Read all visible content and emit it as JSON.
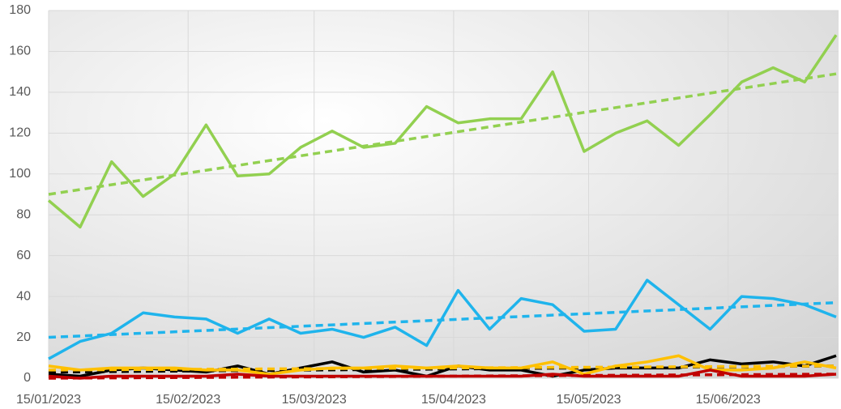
{
  "chart_data": {
    "type": "line",
    "x": [
      "2023-01-15",
      "2023-01-22",
      "2023-01-29",
      "2023-02-05",
      "2023-02-12",
      "2023-02-19",
      "2023-02-26",
      "2023-03-05",
      "2023-03-12",
      "2023-03-19",
      "2023-03-26",
      "2023-04-02",
      "2023-04-09",
      "2023-04-16",
      "2023-04-23",
      "2023-04-30",
      "2023-05-07",
      "2023-05-14",
      "2023-05-21",
      "2023-05-28",
      "2023-06-04",
      "2023-06-11",
      "2023-06-18",
      "2023-06-25",
      "2023-07-02",
      "2023-07-09"
    ],
    "series": [
      {
        "color": "#92d050",
        "values": [
          87,
          74,
          106,
          89,
          100,
          124,
          99,
          100,
          113,
          121,
          113,
          115,
          133,
          125,
          127,
          127,
          150,
          111,
          120,
          126,
          114,
          129,
          145,
          152,
          145,
          168
        ],
        "trend": [
          90,
          149
        ]
      },
      {
        "color": "#1fb4ec",
        "values": [
          9.5,
          18,
          22,
          32,
          30,
          29,
          22,
          29,
          22,
          24,
          20,
          25,
          16,
          43,
          24,
          39,
          36,
          23,
          24,
          48,
          36,
          24,
          40,
          39,
          36,
          30
        ],
        "trend": [
          20,
          37
        ]
      },
      {
        "color": "#000000",
        "values": [
          2,
          1,
          4,
          5,
          4,
          3,
          6,
          2,
          5,
          8,
          3,
          4,
          1,
          6,
          4,
          4,
          1,
          4,
          5,
          5,
          5,
          9,
          7,
          8,
          6,
          11
        ],
        "trend": [
          3,
          6
        ]
      },
      {
        "color": "#ffc000",
        "values": [
          6,
          4,
          5,
          5,
          5,
          4,
          4,
          2,
          4,
          5,
          5,
          6,
          5,
          6,
          5,
          5,
          8,
          2,
          6,
          8,
          11,
          4,
          4,
          5,
          8,
          5
        ],
        "trend": [
          4,
          6
        ]
      },
      {
        "color": "#c00000",
        "values": [
          1,
          0,
          1,
          1,
          1,
          1,
          2,
          1,
          1,
          1,
          1,
          1,
          1,
          1,
          1,
          1,
          2,
          1,
          1,
          1,
          1,
          4,
          1,
          1,
          1,
          2
        ],
        "trend": [
          0,
          2
        ]
      }
    ],
    "xlim": [
      "2023-01-15",
      "2023-07-09"
    ],
    "xticks": [
      {
        "value": "2023-01-15",
        "label": "15/01/2023"
      },
      {
        "value": "2023-02-15",
        "label": "15/02/2023"
      },
      {
        "value": "2023-03-15",
        "label": "15/03/2023"
      },
      {
        "value": "2023-04-15",
        "label": "15/04/2023"
      },
      {
        "value": "2023-05-15",
        "label": "15/05/2023"
      },
      {
        "value": "2023-06-15",
        "label": "15/06/2023"
      }
    ],
    "ylim": [
      0,
      180
    ],
    "yticks": [
      0,
      20,
      40,
      60,
      80,
      100,
      120,
      140,
      160,
      180
    ],
    "grid": true
  }
}
